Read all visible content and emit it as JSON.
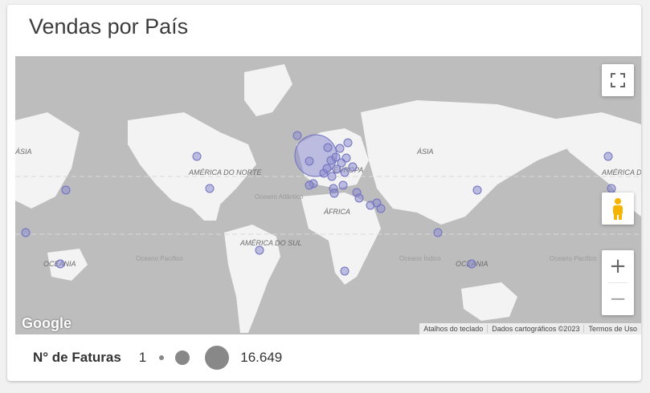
{
  "card": {
    "title": "Vendas por País"
  },
  "map": {
    "continent_labels": [
      "ÁSIA",
      "AMÉRICA DO NORTE",
      "ÁFRICA",
      "AMÉRICA DO SUL",
      "OCEANIA",
      "EUROPA",
      "ÁSIA",
      "AMÉRICA DO NORTE",
      "OCEANIA"
    ],
    "ocean_labels": [
      "Oceano Atlântico",
      "Oceano Pacífico",
      "Oceano Índico",
      "Oceano Pacífico"
    ],
    "attribution": [
      "Atalhos do teclado",
      "Dados cartográficos ©2023",
      "Termos de Uso"
    ],
    "logo": "Google",
    "controls": {
      "zoom_in": "+",
      "zoom_out": "−"
    },
    "bubble_color": "#8e8ecf"
  },
  "legend": {
    "title": "N° de Faturas",
    "min": "1",
    "max": "16.649"
  }
}
